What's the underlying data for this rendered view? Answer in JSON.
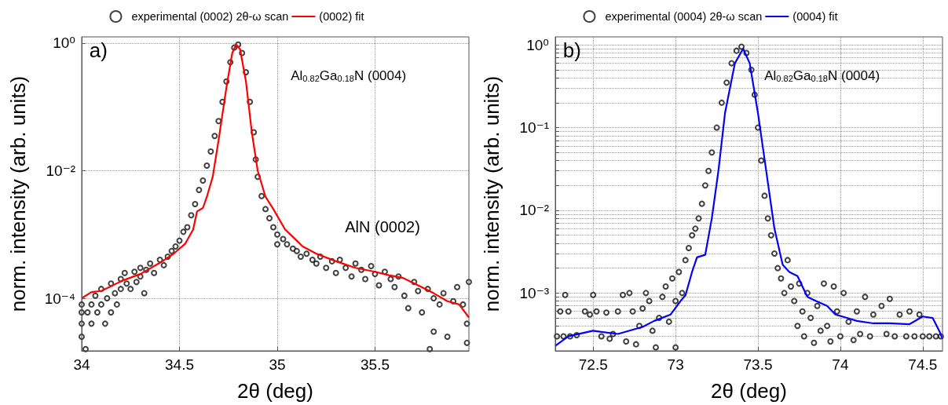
{
  "chart_data": [
    {
      "type": "scatter",
      "xlabel": "2θ (deg)",
      "ylabel": "norm. intensity (arb. units)",
      "log": "y",
      "grid": true,
      "legend": "top",
      "xlim": [
        34,
        35.98
      ],
      "xticks": [
        34,
        34.5,
        35,
        35.5
      ],
      "ylim": [
        1.5e-05,
        1.25
      ],
      "yticks": [
        {
          "value": 0.0001,
          "label": "10⁻⁴"
        },
        {
          "value": 0.01,
          "label": "10⁻²"
        },
        {
          "value": 1,
          "label": "10⁰"
        }
      ],
      "annotations": [
        "a)",
        "Al$_{0.82}$Ga$_{0.18}$N (0004)",
        "AlN (0002)"
      ],
      "series": [
        {
          "name": "experimental (0002) 2θ-ω scan",
          "marker": "circle",
          "color": "#000000",
          "x": [
            34.0,
            34.0,
            34.0,
            34.0,
            34.02,
            34.03,
            34.05,
            34.05,
            34.07,
            34.08,
            34.1,
            34.1,
            34.12,
            34.13,
            34.15,
            34.15,
            34.17,
            34.18,
            34.2,
            34.2,
            34.22,
            34.23,
            34.25,
            34.27,
            34.28,
            34.3,
            34.3,
            34.32,
            34.33,
            34.35,
            34.37,
            34.4,
            34.42,
            34.44,
            34.46,
            34.48,
            34.5,
            34.52,
            34.54,
            34.56,
            34.58,
            34.6,
            34.62,
            34.64,
            34.66,
            34.68,
            34.7,
            34.72,
            34.74,
            34.76,
            34.78,
            34.8,
            34.82,
            34.84,
            34.86,
            34.88,
            34.89,
            34.9,
            34.92,
            34.94,
            34.96,
            34.98,
            35.0,
            35.0,
            35.03,
            35.05,
            35.08,
            35.1,
            35.12,
            35.15,
            35.18,
            35.2,
            35.22,
            35.25,
            35.28,
            35.3,
            35.32,
            35.35,
            35.38,
            35.4,
            35.43,
            35.45,
            35.48,
            35.5,
            35.52,
            35.55,
            35.58,
            35.6,
            35.62,
            35.65,
            35.67,
            35.7,
            35.72,
            35.74,
            35.77,
            35.78,
            35.8,
            35.8,
            35.83,
            35.85,
            35.87,
            35.9,
            35.92,
            35.95,
            35.97,
            35.97,
            35.98
          ],
          "values": [
            8e-05,
            6e-05,
            4e-05,
            2.5e-05,
            1.6e-05,
            6e-05,
            8e-05,
            4e-05,
            0.00011,
            6e-05,
            0.00014,
            8e-05,
            4e-05,
            0.0001,
            0.00017,
            6e-05,
            0.00012,
            8e-05,
            0.0002,
            0.00014,
            0.00025,
            0.00017,
            0.00014,
            0.00026,
            0.00018,
            0.0003,
            0.00022,
            0.00012,
            0.00028,
            0.00035,
            0.00025,
            0.0004,
            0.00033,
            0.00045,
            0.00055,
            0.00065,
            0.0008,
            0.0011,
            0.0013,
            0.002,
            0.003,
            0.005,
            0.007,
            0.012,
            0.02,
            0.035,
            0.06,
            0.12,
            0.25,
            0.5,
            0.85,
            0.95,
            0.7,
            0.35,
            0.12,
            0.04,
            0.015,
            0.008,
            0.004,
            0.0025,
            0.0018,
            0.0013,
            0.001,
            0.0007,
            0.00085,
            0.0007,
            0.0006,
            0.00055,
            0.00045,
            0.0005,
            0.0004,
            0.00035,
            0.00045,
            0.0003,
            0.00038,
            0.00025,
            0.0004,
            0.0003,
            0.00022,
            0.00035,
            0.00028,
            0.0002,
            0.00032,
            0.00024,
            0.00016,
            0.00026,
            0.0002,
            0.00015,
            0.00022,
            0.00011,
            7e-05,
            0.00018,
            0.00013,
            6e-05,
            0.00014,
            1.6e-05,
            0.0001,
            3e-05,
            8e-05,
            0.00012,
            2.5e-05,
            9e-05,
            0.00015,
            8e-05,
            4e-05,
            2e-05,
            0.00018
          ]
        },
        {
          "name": "(0002) fit",
          "type": "line",
          "marker": "none",
          "line_style": "solid",
          "color": "#ff0000",
          "x": [
            34.0,
            34.05,
            34.1,
            34.21,
            34.3,
            34.4,
            34.47,
            34.53,
            34.57,
            34.59,
            34.62,
            34.64,
            34.67,
            34.7,
            34.74,
            34.77,
            34.79,
            34.81,
            34.84,
            34.87,
            34.9,
            34.94,
            34.98,
            35.04,
            35.1,
            35.13,
            35.2,
            35.3,
            35.4,
            35.5,
            35.57,
            35.64,
            35.72,
            35.8,
            35.87,
            35.93,
            35.98
          ],
          "values": [
            0.0001,
            0.000125,
            0.00013,
            0.00019,
            0.00024,
            0.00036,
            0.0005,
            0.00072,
            0.0012,
            0.0023,
            0.0026,
            0.0039,
            0.008,
            0.03,
            0.2,
            0.7,
            0.95,
            0.8,
            0.25,
            0.04,
            0.01,
            0.0039,
            0.0025,
            0.0012,
            0.0008,
            0.00065,
            0.0005,
            0.00038,
            0.0003,
            0.00026,
            0.00023,
            0.00021,
            0.00016,
            0.00012,
            9e-05,
            8e-05,
            5e-05
          ]
        }
      ]
    },
    {
      "type": "scatter",
      "xlabel": "2θ (deg)",
      "ylabel": "norm. intensity (arb. units)",
      "log": "y",
      "grid": true,
      "legend": "top",
      "xlim": [
        72.27,
        74.62
      ],
      "xticks": [
        72.5,
        73,
        73.5,
        74,
        74.5
      ],
      "ylim": [
        0.0002,
        1.25
      ],
      "yticks": [
        {
          "value": 0.0003,
          "label": null
        },
        {
          "value": 0.0004,
          "label": null
        },
        {
          "value": 0.0005,
          "label": null
        },
        {
          "value": 0.0006,
          "label": null
        },
        {
          "value": 0.0007,
          "label": null
        },
        {
          "value": 0.0008,
          "label": null
        },
        {
          "value": 0.0009,
          "label": null
        },
        {
          "value": 0.001,
          "label": "10⁻³"
        },
        {
          "value": 0.002,
          "label": null
        },
        {
          "value": 0.003,
          "label": null
        },
        {
          "value": 0.004,
          "label": null
        },
        {
          "value": 0.005,
          "label": null
        },
        {
          "value": 0.006,
          "label": null
        },
        {
          "value": 0.007,
          "label": null
        },
        {
          "value": 0.008,
          "label": null
        },
        {
          "value": 0.009,
          "label": null
        },
        {
          "value": 0.01,
          "label": "10⁻²"
        },
        {
          "value": 0.02,
          "label": null
        },
        {
          "value": 0.03,
          "label": null
        },
        {
          "value": 0.04,
          "label": null
        },
        {
          "value": 0.05,
          "label": null
        },
        {
          "value": 0.06,
          "label": null
        },
        {
          "value": 0.07,
          "label": null
        },
        {
          "value": 0.08,
          "label": null
        },
        {
          "value": 0.09,
          "label": null
        },
        {
          "value": 0.1,
          "label": "10⁻¹"
        },
        {
          "value": 0.2,
          "label": null
        },
        {
          "value": 0.3,
          "label": null
        },
        {
          "value": 0.4,
          "label": null
        },
        {
          "value": 0.5,
          "label": null
        },
        {
          "value": 0.6,
          "label": null
        },
        {
          "value": 0.7,
          "label": null
        },
        {
          "value": 0.8,
          "label": null
        },
        {
          "value": 0.9,
          "label": null
        },
        {
          "value": 1,
          "label": "10⁰"
        }
      ],
      "annotations": [
        "b)",
        "Al$_{0.82}$Ga$_{0.18}$N (0004)"
      ],
      "series": [
        {
          "name": "experimental (0004) 2θ-ω scan",
          "marker": "circle",
          "color": "#000000",
          "x": [
            72.28,
            72.32,
            72.36,
            72.4,
            72.3,
            72.35,
            72.33,
            72.45,
            72.48,
            72.5,
            72.52,
            72.55,
            72.58,
            72.6,
            72.62,
            72.65,
            72.68,
            72.7,
            72.72,
            72.74,
            72.76,
            72.78,
            72.8,
            72.82,
            72.84,
            72.86,
            72.88,
            72.9,
            72.92,
            72.94,
            72.96,
            72.98,
            73.0,
            73.0,
            73.02,
            73.04,
            73.06,
            73.08,
            73.1,
            73.12,
            73.14,
            73.16,
            73.18,
            73.2,
            73.22,
            73.25,
            73.28,
            73.31,
            73.34,
            73.37,
            73.4,
            73.43,
            73.46,
            73.48,
            73.5,
            73.52,
            73.54,
            73.56,
            73.58,
            73.6,
            73.62,
            73.64,
            73.66,
            73.68,
            73.7,
            73.72,
            73.74,
            73.75,
            73.77,
            73.78,
            73.8,
            73.82,
            73.84,
            73.86,
            73.88,
            73.9,
            73.92,
            73.94,
            73.96,
            73.98,
            74.0,
            74.02,
            74.05,
            74.08,
            74.1,
            74.12,
            74.15,
            74.18,
            74.2,
            74.25,
            74.28,
            74.3,
            74.33,
            74.36,
            74.4,
            74.42,
            74.45,
            74.48,
            74.5,
            74.54,
            74.58,
            74.61
          ],
          "values": [
            0.0003,
            0.0003,
            0.0003,
            0.00031,
            0.0006,
            0.0006,
            0.00095,
            0.0006,
            0.00055,
            0.00095,
            0.0006,
            0.0003,
            0.00058,
            0.00028,
            0.00032,
            0.0006,
            0.00095,
            0.00026,
            0.001,
            0.0006,
            0.00024,
            0.0004,
            0.00065,
            0.001,
            0.0008,
            0.00035,
            0.00022,
            0.0005,
            0.0009,
            0.0012,
            0.00045,
            0.0015,
            0.0008,
            0.00022,
            0.0018,
            0.001,
            0.0025,
            0.0035,
            0.005,
            0.006,
            0.008,
            0.012,
            0.02,
            0.03,
            0.05,
            0.1,
            0.2,
            0.35,
            0.6,
            0.85,
            0.95,
            0.8,
            0.5,
            0.25,
            0.1,
            0.04,
            0.015,
            0.008,
            0.005,
            0.003,
            0.002,
            0.0015,
            0.001,
            0.0025,
            0.0012,
            0.0008,
            0.0004,
            0.0013,
            0.0006,
            0.0003,
            0.001,
            0.0005,
            0.00025,
            0.0007,
            0.00035,
            0.0013,
            0.0004,
            0.00026,
            0.0012,
            0.0006,
            0.0003,
            0.001,
            0.00045,
            0.00027,
            0.0006,
            0.00032,
            0.0009,
            0.0003,
            0.00055,
            0.0007,
            0.00032,
            0.00085,
            0.0003,
            0.00055,
            0.0003,
            0.0006,
            0.0003,
            0.00055,
            0.0003,
            0.0003,
            0.0003,
            0.0003
          ]
        },
        {
          "name": "(0004) fit",
          "type": "line",
          "marker": "none",
          "line_style": "solid",
          "color": "#0000ff",
          "x": [
            72.27,
            72.35,
            72.5,
            72.65,
            72.8,
            72.87,
            72.97,
            73.03,
            73.06,
            73.1,
            73.13,
            73.18,
            73.22,
            73.26,
            73.3,
            73.36,
            73.41,
            73.45,
            73.5,
            73.55,
            73.6,
            73.65,
            73.69,
            73.74,
            73.8,
            73.86,
            73.92,
            73.97,
            74.04,
            74.1,
            74.2,
            74.3,
            74.42,
            74.5,
            74.56,
            74.6,
            74.62
          ],
          "values": [
            0.00023,
            0.0003,
            0.00035,
            0.00032,
            0.00039,
            0.00046,
            0.00055,
            0.0008,
            0.00094,
            0.0018,
            0.0027,
            0.0029,
            0.008,
            0.03,
            0.15,
            0.6,
            0.9,
            0.6,
            0.15,
            0.03,
            0.006,
            0.0022,
            0.0018,
            0.0016,
            0.0009,
            0.00079,
            0.0007,
            0.00055,
            0.0005,
            0.00046,
            0.00043,
            0.00043,
            0.00042,
            0.00052,
            0.0005,
            0.00035,
            0.00028
          ]
        }
      ]
    }
  ]
}
